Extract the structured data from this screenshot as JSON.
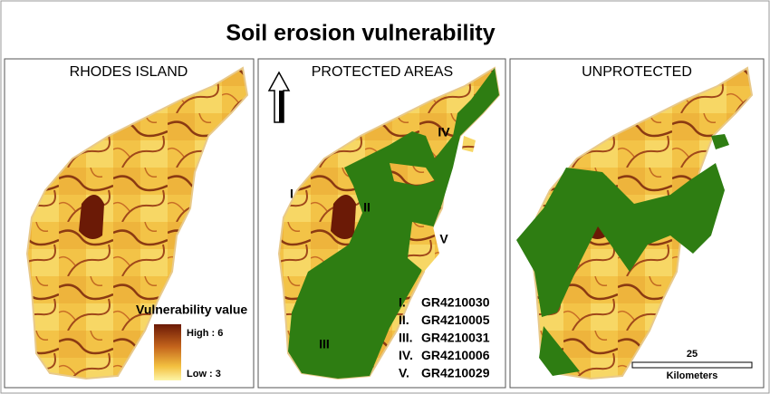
{
  "title": "Soil erosion vulnerability",
  "panels": [
    {
      "title": "RHODES ISLAND"
    },
    {
      "title": "PROTECTED AREAS"
    },
    {
      "title": "UNPROTECTED"
    }
  ],
  "legend": {
    "title": "Vulnerability value",
    "high": "High : 6",
    "low": "Low : 3"
  },
  "site_labels": [
    "I",
    "II",
    "III",
    "IV",
    "V"
  ],
  "protected_areas": [
    {
      "numeral": "I.",
      "code": "GR4210030"
    },
    {
      "numeral": "II.",
      "code": "GR4210005"
    },
    {
      "numeral": "III.",
      "code": "GR4210031"
    },
    {
      "numeral": "IV.",
      "code": "GR4210006"
    },
    {
      "numeral": "V.",
      "code": "GR4210029"
    }
  ],
  "scale_bar": {
    "distance": "25",
    "unit": "Kilometers"
  }
}
